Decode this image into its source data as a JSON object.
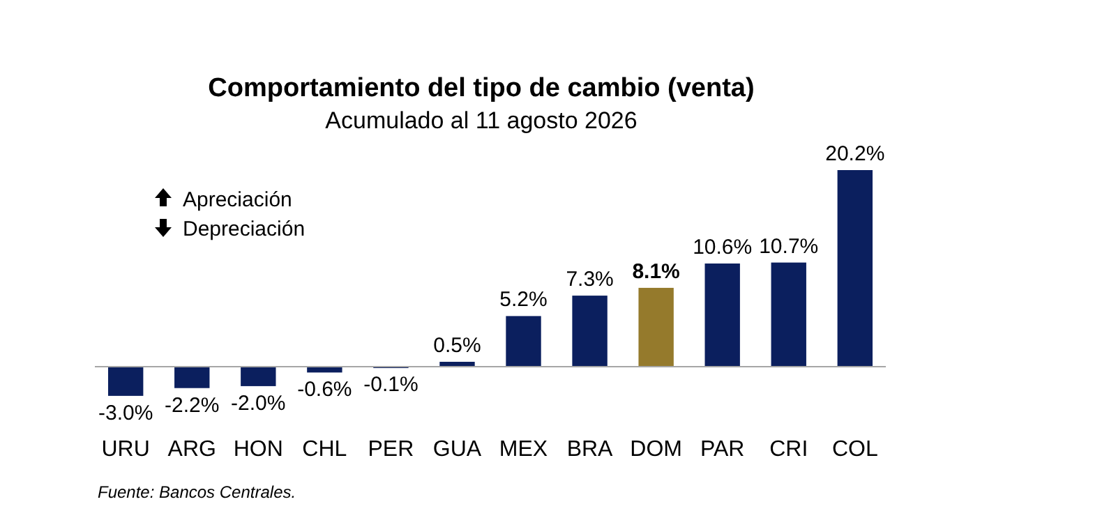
{
  "chart_data": {
    "type": "bar",
    "title": "Comportamiento del tipo de cambio (venta)",
    "subtitle": "Acumulado al 11 agosto 2026",
    "categories": [
      "URU",
      "ARG",
      "HON",
      "CHL",
      "PER",
      "GUA",
      "MEX",
      "BRA",
      "DOM",
      "PAR",
      "CRI",
      "COL"
    ],
    "values": [
      -3.0,
      -2.2,
      -2.0,
      -0.6,
      -0.1,
      0.5,
      5.2,
      7.3,
      8.1,
      10.6,
      10.7,
      20.2
    ],
    "colors": [
      "#0b1f5e",
      "#0b1f5e",
      "#0b1f5e",
      "#0b1f5e",
      "#0b1f5e",
      "#0b1f5e",
      "#0b1f5e",
      "#0b1f5e",
      "#957a2c",
      "#0b1f5e",
      "#0b1f5e",
      "#0b1f5e"
    ],
    "value_labels": [
      "-3.0%",
      "-2.2%",
      "-2.0%",
      "-0.6%",
      "-0.1%",
      "0.5%",
      "5.2%",
      "7.3%",
      "8.1%",
      "10.6%",
      "10.7%",
      "20.2%"
    ],
    "annotations": [
      "Apreciación",
      "Depreciación",
      "Fuente: Bancos Centrales."
    ]
  }
}
